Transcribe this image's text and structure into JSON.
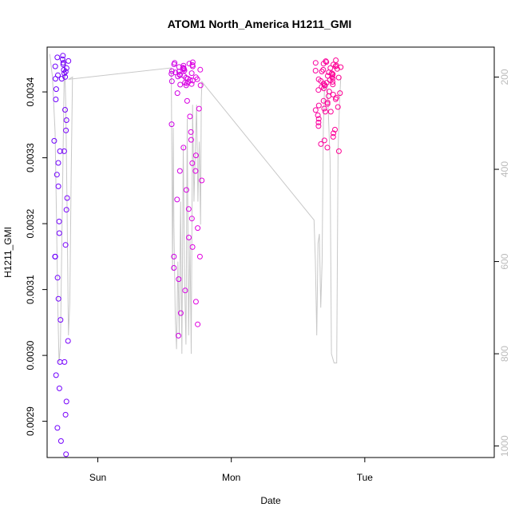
{
  "chart_data": {
    "type": "scatter",
    "title": "ATOM1 North_America H1211_GMI",
    "xlabel": "Date",
    "ylabel": "H1211_GMI",
    "x_ticks": [
      "Sun",
      "Mon",
      "Tue"
    ],
    "x_range_days": [
      -0.38,
      2.97
    ],
    "y_ticks": [
      "0.0029",
      "0.0030",
      "0.0031",
      "0.0032",
      "0.0033",
      "0.0034"
    ],
    "y_tick_values": [
      0.0029,
      0.003,
      0.0031,
      0.0032,
      0.0033,
      0.0034
    ],
    "ylim": [
      0.002845,
      0.003468
    ],
    "y2_ticks": [
      "200",
      "400",
      "600",
      "800",
      "1000"
    ],
    "y2_tick_values": [
      200,
      400,
      600,
      800,
      1000
    ],
    "y2lim": [
      135,
      1025
    ],
    "y2_reversed": true,
    "grid": false,
    "legend": "none",
    "colors": {
      "start": "#6a00ff",
      "mid": "#e000e0",
      "end": "#ff0090",
      "profile_line": "#c8c8c8",
      "axis": "#000000",
      "right_axis_text": "#bbbbbb"
    },
    "series": [
      {
        "role": "h1211_points",
        "segments": [
          {
            "t_range": [
              -0.34,
              -0.22
            ],
            "ranges": [
              [
                0.003455,
                0.00342
              ],
              [
                0.00342,
                0.00331
              ],
              [
                0.00331,
                0.00315
              ],
              [
                0.00315,
                0.00299
              ],
              [
                0.00299,
                0.00285
              ]
            ],
            "counts": [
              14,
              8,
              10,
              6,
              8
            ]
          },
          {
            "t_range": [
              0.55,
              0.78
            ],
            "ranges": [
              [
                0.003445,
                0.00341
              ],
              [
                0.00341,
                0.00328
              ],
              [
                0.00328,
                0.00315
              ],
              [
                0.00315,
                0.00303
              ]
            ],
            "counts": [
              35,
              12,
              10,
              8
            ]
          },
          {
            "t_range": [
              1.63,
              1.82
            ],
            "ranges": [
              [
                0.003448,
                0.00341
              ],
              [
                0.00341,
                0.00337
              ],
              [
                0.00337,
                0.00331
              ]
            ],
            "counts": [
              30,
              18,
              12
            ]
          }
        ]
      },
      {
        "role": "pressure_line",
        "axis": "right",
        "points": [
          [
            -0.36,
            150
          ],
          [
            -0.34,
            200
          ],
          [
            -0.32,
            320
          ],
          [
            -0.31,
            500
          ],
          [
            -0.3,
            700
          ],
          [
            -0.29,
            820
          ],
          [
            -0.28,
            780
          ],
          [
            -0.27,
            560
          ],
          [
            -0.26,
            350
          ],
          [
            -0.25,
            160
          ],
          [
            -0.24,
            260
          ],
          [
            -0.23,
            500
          ],
          [
            -0.22,
            760
          ],
          [
            -0.21,
            690
          ],
          [
            -0.2,
            420
          ],
          [
            -0.19,
            200
          ],
          [
            -0.22,
            205
          ],
          [
            0.55,
            180
          ],
          [
            0.56,
            620
          ],
          [
            0.565,
            310
          ],
          [
            0.57,
            520
          ],
          [
            0.58,
            720
          ],
          [
            0.59,
            790
          ],
          [
            0.6,
            600
          ],
          [
            0.61,
            760
          ],
          [
            0.62,
            470
          ],
          [
            0.63,
            800
          ],
          [
            0.64,
            350
          ],
          [
            0.65,
            640
          ],
          [
            0.66,
            780
          ],
          [
            0.67,
            290
          ],
          [
            0.68,
            760
          ],
          [
            0.69,
            550
          ],
          [
            0.7,
            800
          ],
          [
            0.71,
            260
          ],
          [
            0.72,
            470
          ],
          [
            0.73,
            360
          ],
          [
            0.74,
            260
          ],
          [
            0.75,
            470
          ],
          [
            0.76,
            340
          ],
          [
            0.77,
            520
          ],
          [
            0.775,
            250
          ],
          [
            0.78,
            210
          ],
          [
            1.62,
            510
          ],
          [
            1.63,
            600
          ],
          [
            1.64,
            760
          ],
          [
            1.65,
            560
          ],
          [
            1.66,
            540
          ],
          [
            1.67,
            700
          ],
          [
            1.68,
            600
          ],
          [
            1.69,
            300
          ],
          [
            1.7,
            210
          ],
          [
            1.72,
            220
          ],
          [
            1.74,
            380
          ],
          [
            1.75,
            800
          ],
          [
            1.77,
            820
          ],
          [
            1.79,
            820
          ],
          [
            1.8,
            360
          ],
          [
            1.81,
            260
          ],
          [
            1.82,
            200
          ]
        ]
      }
    ]
  }
}
